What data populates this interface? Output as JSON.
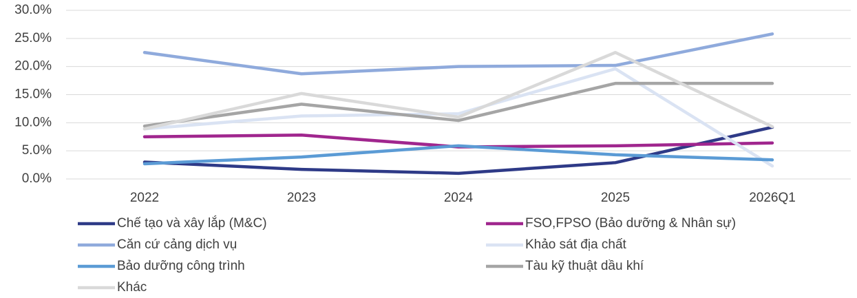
{
  "chart_data": {
    "type": "line",
    "categories": [
      "2022",
      "2023",
      "2024",
      "2025",
      "2026Q1"
    ],
    "series": [
      {
        "name": "Chế tạo và xây lắp (M&C)",
        "color": "#2e3a87",
        "values": [
          3.0,
          1.7,
          1.0,
          2.9,
          9.2
        ]
      },
      {
        "name": "FSO,FPSO (Bảo dưỡng & Nhân sự)",
        "color": "#a0268e",
        "values": [
          7.5,
          7.8,
          5.7,
          5.9,
          6.4
        ]
      },
      {
        "name": "Căn cứ cảng dịch vụ",
        "color": "#8faadc",
        "values": [
          22.5,
          18.7,
          20.0,
          20.2,
          25.8
        ]
      },
      {
        "name": "Khảo sát địa chất",
        "color": "#dae3f3",
        "values": [
          8.9,
          11.2,
          11.6,
          19.6,
          2.3
        ]
      },
      {
        "name": "Bảo dưỡng công trình",
        "color": "#5b9bd5",
        "values": [
          2.7,
          3.9,
          5.9,
          4.3,
          3.4
        ]
      },
      {
        "name": "Tàu kỹ thuật dầu khí",
        "color": "#a5a5a5",
        "values": [
          9.4,
          13.3,
          10.4,
          17.0,
          17.0
        ]
      },
      {
        "name": "Khác",
        "color": "#d9d9d9",
        "values": [
          8.9,
          15.2,
          11.0,
          22.5,
          9.3
        ]
      }
    ],
    "ylim": [
      0,
      30
    ],
    "yticks": [
      {
        "value": 0,
        "label": "0.0%"
      },
      {
        "value": 5,
        "label": "5.0%"
      },
      {
        "value": 10,
        "label": "10.0%"
      },
      {
        "value": 15,
        "label": "15.0%"
      },
      {
        "value": 20,
        "label": "20.0%"
      },
      {
        "value": 25,
        "label": "25.0%"
      },
      {
        "value": 30,
        "label": "30.0%"
      }
    ],
    "grid": true,
    "legend": "bottom"
  }
}
